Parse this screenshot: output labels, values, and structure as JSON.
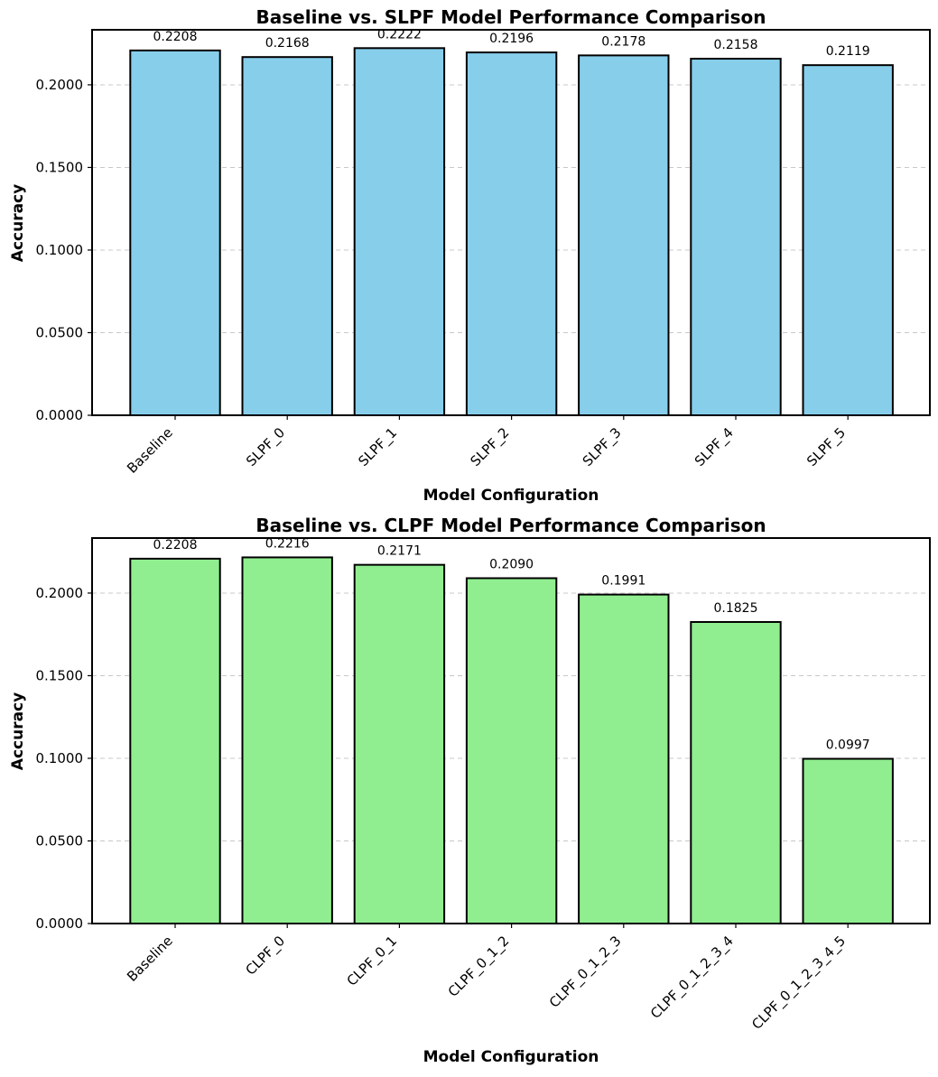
{
  "chart_data": [
    {
      "type": "bar",
      "title": "Baseline vs. SLPF Model Performance Comparison",
      "xlabel": "Model Configuration",
      "ylabel": "Accuracy",
      "categories": [
        "Baseline",
        "SLPF_0",
        "SLPF_1",
        "SLPF_2",
        "SLPF_3",
        "SLPF_4",
        "SLPF_5"
      ],
      "values": [
        0.2208,
        0.2168,
        0.2222,
        0.2196,
        0.2178,
        0.2158,
        0.2119
      ],
      "value_labels": [
        "0.2208",
        "0.2168",
        "0.2222",
        "0.2196",
        "0.2178",
        "0.2158",
        "0.2119"
      ],
      "ylim": [
        0,
        0.2333
      ],
      "yticks": [
        0,
        0.05,
        0.1,
        0.15,
        0.2
      ],
      "ytick_labels": [
        "0.0000",
        "0.0500",
        "0.1000",
        "0.1500",
        "0.2000"
      ],
      "grid": "y-dashed",
      "bar_color": "#87CEEB",
      "edge_color": "#000000"
    },
    {
      "type": "bar",
      "title": "Baseline vs. CLPF Model Performance Comparison",
      "xlabel": "Model Configuration",
      "ylabel": "Accuracy",
      "categories": [
        "Baseline",
        "CLPF_0",
        "CLPF_0_1",
        "CLPF_0_1_2",
        "CLPF_0_1_2_3",
        "CLPF_0_1_2_3_4",
        "CLPF_0_1_2_3_4_5"
      ],
      "values": [
        0.2208,
        0.2216,
        0.2171,
        0.209,
        0.1991,
        0.1825,
        0.0997
      ],
      "value_labels": [
        "0.2208",
        "0.2216",
        "0.2171",
        "0.2090",
        "0.1991",
        "0.1825",
        "0.0997"
      ],
      "ylim": [
        0,
        0.2333
      ],
      "yticks": [
        0,
        0.05,
        0.1,
        0.15,
        0.2
      ],
      "ytick_labels": [
        "0.0000",
        "0.0500",
        "0.1000",
        "0.1500",
        "0.2000"
      ],
      "grid": "y-dashed",
      "bar_color": "#90EE90",
      "edge_color": "#000000"
    }
  ]
}
